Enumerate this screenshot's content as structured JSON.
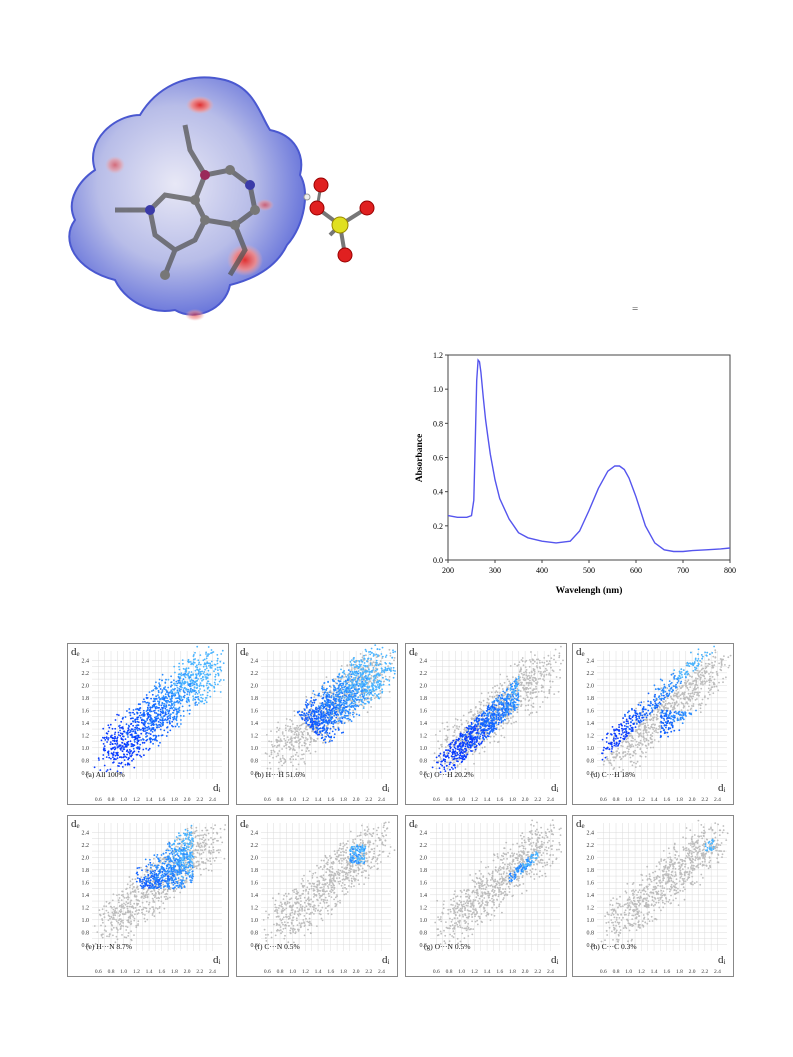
{
  "stray_mark": "=",
  "uv_chart": {
    "xlabel": "Wavelengh (nm)",
    "ylabel": "Absorbance",
    "xticks": [
      "200",
      "300",
      "400",
      "500",
      "600",
      "700",
      "800"
    ],
    "yticks": [
      "0.0",
      "0.2",
      "0.4",
      "0.6",
      "0.8",
      "1.0",
      "1.2"
    ],
    "line_color": "#5555ee"
  },
  "fingerprints": {
    "de_label": "d",
    "de_sub": "e",
    "di_label": "d",
    "di_sub": "i",
    "ticks": [
      "0.6",
      "0.8",
      "1.0",
      "1.2",
      "1.4",
      "1.6",
      "1.8",
      "2.0",
      "2.2",
      "2.4"
    ],
    "panels": [
      {
        "label": "(a) All 100%"
      },
      {
        "label": "(b) H···H 51.6%"
      },
      {
        "label": "(c) O···H 20.2%"
      },
      {
        "label": "(d) C···H 18%"
      },
      {
        "label": "(e) H···N 8.7%"
      },
      {
        "label": "(f) C···N 0.5%"
      },
      {
        "label": "(g) O···N 0.5%"
      },
      {
        "label": "(h) C···C 0.3%"
      }
    ]
  },
  "chart_data": {
    "type": "line",
    "title": "",
    "xlabel": "Wavelengh (nm)",
    "ylabel": "Absorbance",
    "xlim": [
      200,
      800
    ],
    "ylim": [
      0,
      1.2
    ],
    "series": [
      {
        "x": [
          200,
          220,
          240,
          250,
          255,
          258,
          261,
          264,
          267,
          270,
          275,
          280,
          285,
          290,
          300,
          310,
          320,
          330,
          340,
          350,
          370,
          400,
          430,
          460,
          480,
          500,
          520,
          540,
          555,
          565,
          575,
          585,
          600,
          620,
          640,
          660,
          680,
          700,
          720,
          750,
          780,
          800
        ],
        "y": [
          0.26,
          0.25,
          0.25,
          0.26,
          0.35,
          0.7,
          1.05,
          1.17,
          1.16,
          1.1,
          0.95,
          0.82,
          0.72,
          0.62,
          0.47,
          0.36,
          0.3,
          0.24,
          0.2,
          0.16,
          0.13,
          0.11,
          0.1,
          0.11,
          0.17,
          0.29,
          0.42,
          0.52,
          0.55,
          0.55,
          0.53,
          0.48,
          0.37,
          0.2,
          0.1,
          0.06,
          0.05,
          0.05,
          0.055,
          0.06,
          0.065,
          0.07
        ]
      }
    ]
  }
}
